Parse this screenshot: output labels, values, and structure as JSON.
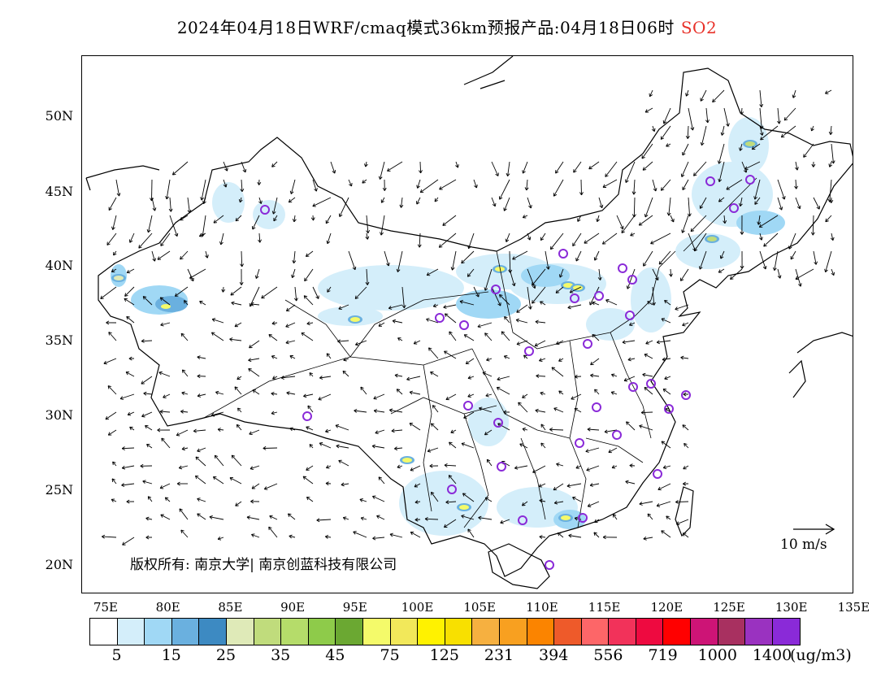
{
  "title": {
    "text": "2024年04月18日WRF/cmaq模式36km预报产品:04月18日06时",
    "species": "SO2"
  },
  "axes": {
    "lat_labels": [
      "50N",
      "45N",
      "40N",
      "35N",
      "30N",
      "25N",
      "20N"
    ],
    "lon_labels": [
      "75E",
      "80E",
      "85E",
      "90E",
      "95E",
      "100E",
      "105E",
      "110E",
      "115E",
      "120E",
      "125E",
      "130E",
      "135E"
    ]
  },
  "copyright": "版权所有: 南京大学| 南京创蓝科技有限公司",
  "wind_reference": "10 m/s",
  "legend": {
    "colors": [
      "#ffffff",
      "#d4eefa",
      "#a0d8f5",
      "#6ab0df",
      "#3d8ac2",
      "#dfeab8",
      "#c0dc7c",
      "#b5dc6a",
      "#8ecb4a",
      "#6ba832",
      "#f4fa6a",
      "#f2e85a",
      "#fff200",
      "#f8e000",
      "#f6b040",
      "#f8a020",
      "#fb8400",
      "#ee5a2a",
      "#fd6668",
      "#f2325a",
      "#ee0a40",
      "#ff0000",
      "#cd1476",
      "#a83060",
      "#9a32c0",
      "#8a2ad8"
    ],
    "labels": [
      "5",
      "15",
      "25",
      "35",
      "45",
      "75",
      "125",
      "231",
      "394",
      "556",
      "719",
      "1000",
      "1400"
    ],
    "unit": "(ug/m3)"
  },
  "map": {
    "region": "China",
    "background": "#ffffff",
    "concentration_palette_low": "#d4eefa",
    "concentration_palette_mid": "#6ab0df",
    "hotspot_color": "#f4fa6a",
    "station_marker_color": "#8a2ad8"
  }
}
